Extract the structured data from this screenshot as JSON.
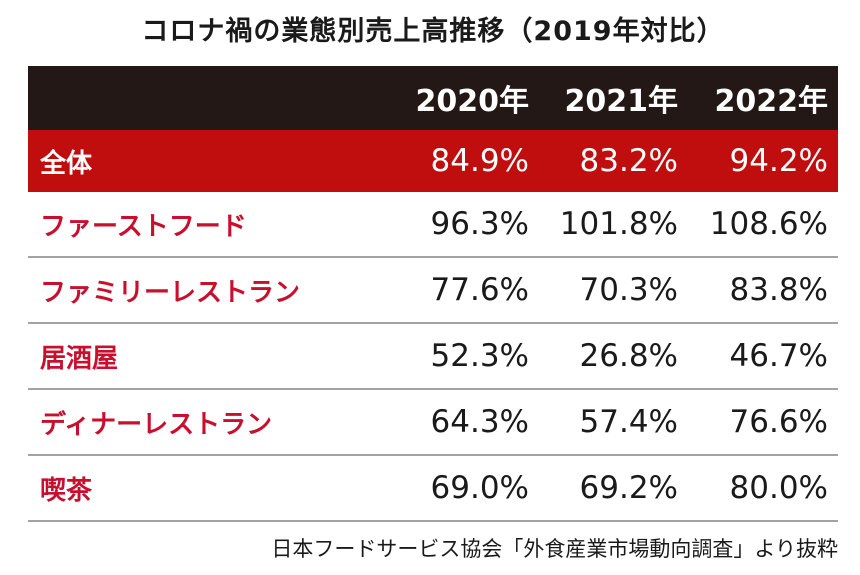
{
  "title": "コロナ禍の業態別売上高推移（2019年対比）",
  "source": "日本フードサービス協会「外食産業市場動向調査」より抜粋",
  "colors": {
    "header_bg": "#231815",
    "total_row_bg": "#c00d0d",
    "label_text": "#c8102e",
    "row_divider": "#a3a3a3"
  },
  "chart_data": {
    "type": "table",
    "title": "コロナ禍の業態別売上高推移（2019年対比）",
    "columns": [
      "2020年",
      "2021年",
      "2022年"
    ],
    "total": {
      "label": "全体",
      "values": [
        "84.9%",
        "83.2%",
        "94.2%"
      ]
    },
    "rows": [
      {
        "label": "ファーストフード",
        "values": [
          "96.3%",
          "101.8%",
          "108.6%"
        ]
      },
      {
        "label": "ファミリーレストラン",
        "values": [
          "77.6%",
          "70.3%",
          "83.8%"
        ]
      },
      {
        "label": "居酒屋",
        "values": [
          "52.3%",
          "26.8%",
          "46.7%"
        ]
      },
      {
        "label": "ディナーレストラン",
        "values": [
          "64.3%",
          "57.4%",
          "76.6%"
        ]
      },
      {
        "label": "喫茶",
        "values": [
          "69.0%",
          "69.2%",
          "80.0%"
        ]
      }
    ]
  }
}
